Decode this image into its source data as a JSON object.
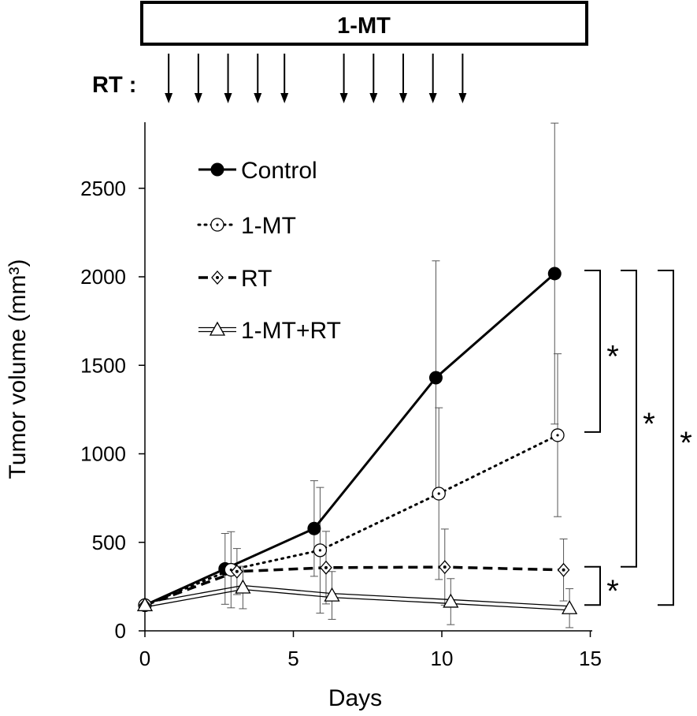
{
  "treatment_bar": {
    "label": "1-MT"
  },
  "rt_label": "RT :",
  "rt_days": [
    0.8,
    1.8,
    2.8,
    3.8,
    4.7,
    6.7,
    7.7,
    8.7,
    9.7,
    10.7
  ],
  "chart_data": {
    "type": "line",
    "xlabel": "Days",
    "ylabel": "Tumor volume (mm³)",
    "xlim": [
      0,
      15
    ],
    "ylim": [
      0,
      2900
    ],
    "xticks": [
      0,
      5,
      10,
      15
    ],
    "yticks": [
      0,
      500,
      1000,
      1500,
      2000,
      2500
    ],
    "grid": false,
    "legend_position": "top-left",
    "series": [
      {
        "name": "Control",
        "marker": "filled-circle",
        "line": "solid",
        "x": [
          0,
          2.7,
          5.7,
          9.8,
          13.8
        ],
        "y": [
          145,
          350,
          578,
          1430,
          2018
        ],
        "err": [
          20,
          200,
          270,
          660,
          850
        ]
      },
      {
        "name": "1-MT",
        "marker": "dotted-circle",
        "line": "dotted",
        "x": [
          0,
          2.9,
          5.9,
          9.9,
          13.9
        ],
        "y": [
          145,
          345,
          455,
          775,
          1105
        ],
        "err": [
          20,
          215,
          355,
          485,
          460
        ]
      },
      {
        "name": "RT",
        "marker": "diamond",
        "line": "dashed",
        "x": [
          0,
          3.1,
          6.1,
          10.1,
          14.1
        ],
        "y": [
          145,
          335,
          357,
          360,
          344
        ],
        "err": [
          20,
          130,
          205,
          215,
          175
        ]
      },
      {
        "name": "1-MT+RT",
        "marker": "open-triangle",
        "line": "double",
        "x": [
          0,
          3.3,
          6.3,
          10.3,
          14.3
        ],
        "y": [
          145,
          245,
          200,
          165,
          128
        ],
        "err": [
          20,
          120,
          135,
          130,
          110
        ]
      }
    ],
    "annotations": [
      {
        "text": "*",
        "y_from": 2018,
        "y_to": 1105
      },
      {
        "text": "*",
        "y_from": 2018,
        "y_to": 344
      },
      {
        "text": "*",
        "y_from": 2018,
        "y_to": 128
      },
      {
        "text": "*",
        "y_from": 344,
        "y_to": 128
      }
    ]
  }
}
